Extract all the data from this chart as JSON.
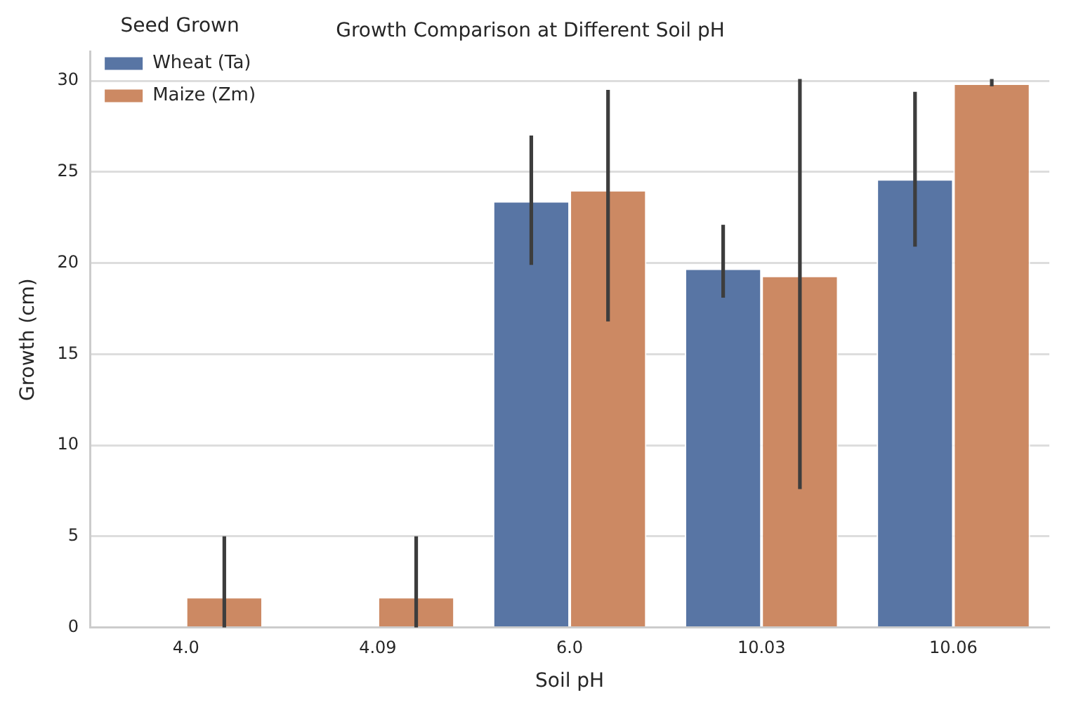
{
  "chart_data": {
    "type": "bar",
    "title": "Growth Comparison at Different Soil pH",
    "xlabel": "Soil pH",
    "ylabel": "Growth (cm)",
    "legend_title": "Seed Grown",
    "categories": [
      "4.0",
      "4.09",
      "6.0",
      "10.03",
      "10.06"
    ],
    "series": [
      {
        "name": "Wheat (Ta)",
        "color": "#5875a4",
        "values": [
          0,
          0,
          23.4,
          19.7,
          24.6
        ],
        "errors": [
          null,
          null,
          [
            19.9,
            27.0
          ],
          [
            18.1,
            22.1
          ],
          [
            20.9,
            29.4
          ]
        ]
      },
      {
        "name": "Maize (Zm)",
        "color": "#cc8963",
        "values": [
          1.67,
          1.67,
          24.0,
          19.3,
          29.85
        ],
        "errors": [
          [
            0,
            5
          ],
          [
            0,
            5
          ],
          [
            16.8,
            29.5
          ],
          [
            7.6,
            30.1
          ],
          [
            29.7,
            30.1
          ]
        ]
      }
    ],
    "ylim": [
      0,
      31.6
    ],
    "yticks": [
      0,
      5,
      10,
      15,
      20,
      25,
      30
    ],
    "grid": "y",
    "legend": "top left"
  }
}
